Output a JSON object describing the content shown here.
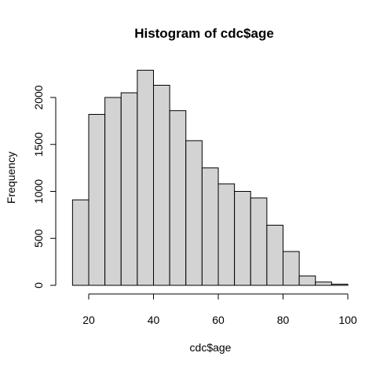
{
  "chart_data": {
    "type": "bar",
    "title": "Histogram of cdc$age",
    "xlabel": "cdc$age",
    "ylabel": "Frequency",
    "xlim": [
      15,
      100
    ],
    "ylim": [
      0,
      2300
    ],
    "x_ticks": [
      20,
      40,
      60,
      80,
      100
    ],
    "y_ticks": [
      0,
      500,
      1000,
      1500,
      2000
    ],
    "bins": [
      {
        "start": 15,
        "end": 20,
        "count": 910
      },
      {
        "start": 20,
        "end": 25,
        "count": 1820
      },
      {
        "start": 25,
        "end": 30,
        "count": 2000
      },
      {
        "start": 30,
        "end": 35,
        "count": 2050
      },
      {
        "start": 35,
        "end": 40,
        "count": 2290
      },
      {
        "start": 40,
        "end": 45,
        "count": 2130
      },
      {
        "start": 45,
        "end": 50,
        "count": 1860
      },
      {
        "start": 50,
        "end": 55,
        "count": 1540
      },
      {
        "start": 55,
        "end": 60,
        "count": 1250
      },
      {
        "start": 60,
        "end": 65,
        "count": 1080
      },
      {
        "start": 65,
        "end": 70,
        "count": 1000
      },
      {
        "start": 70,
        "end": 75,
        "count": 930
      },
      {
        "start": 75,
        "end": 80,
        "count": 640
      },
      {
        "start": 80,
        "end": 85,
        "count": 360
      },
      {
        "start": 85,
        "end": 90,
        "count": 100
      },
      {
        "start": 90,
        "end": 95,
        "count": 35
      },
      {
        "start": 95,
        "end": 100,
        "count": 12
      }
    ],
    "bar_fill": "#d3d3d3",
    "bar_stroke": "#000000",
    "grid": false,
    "legend": "none"
  }
}
